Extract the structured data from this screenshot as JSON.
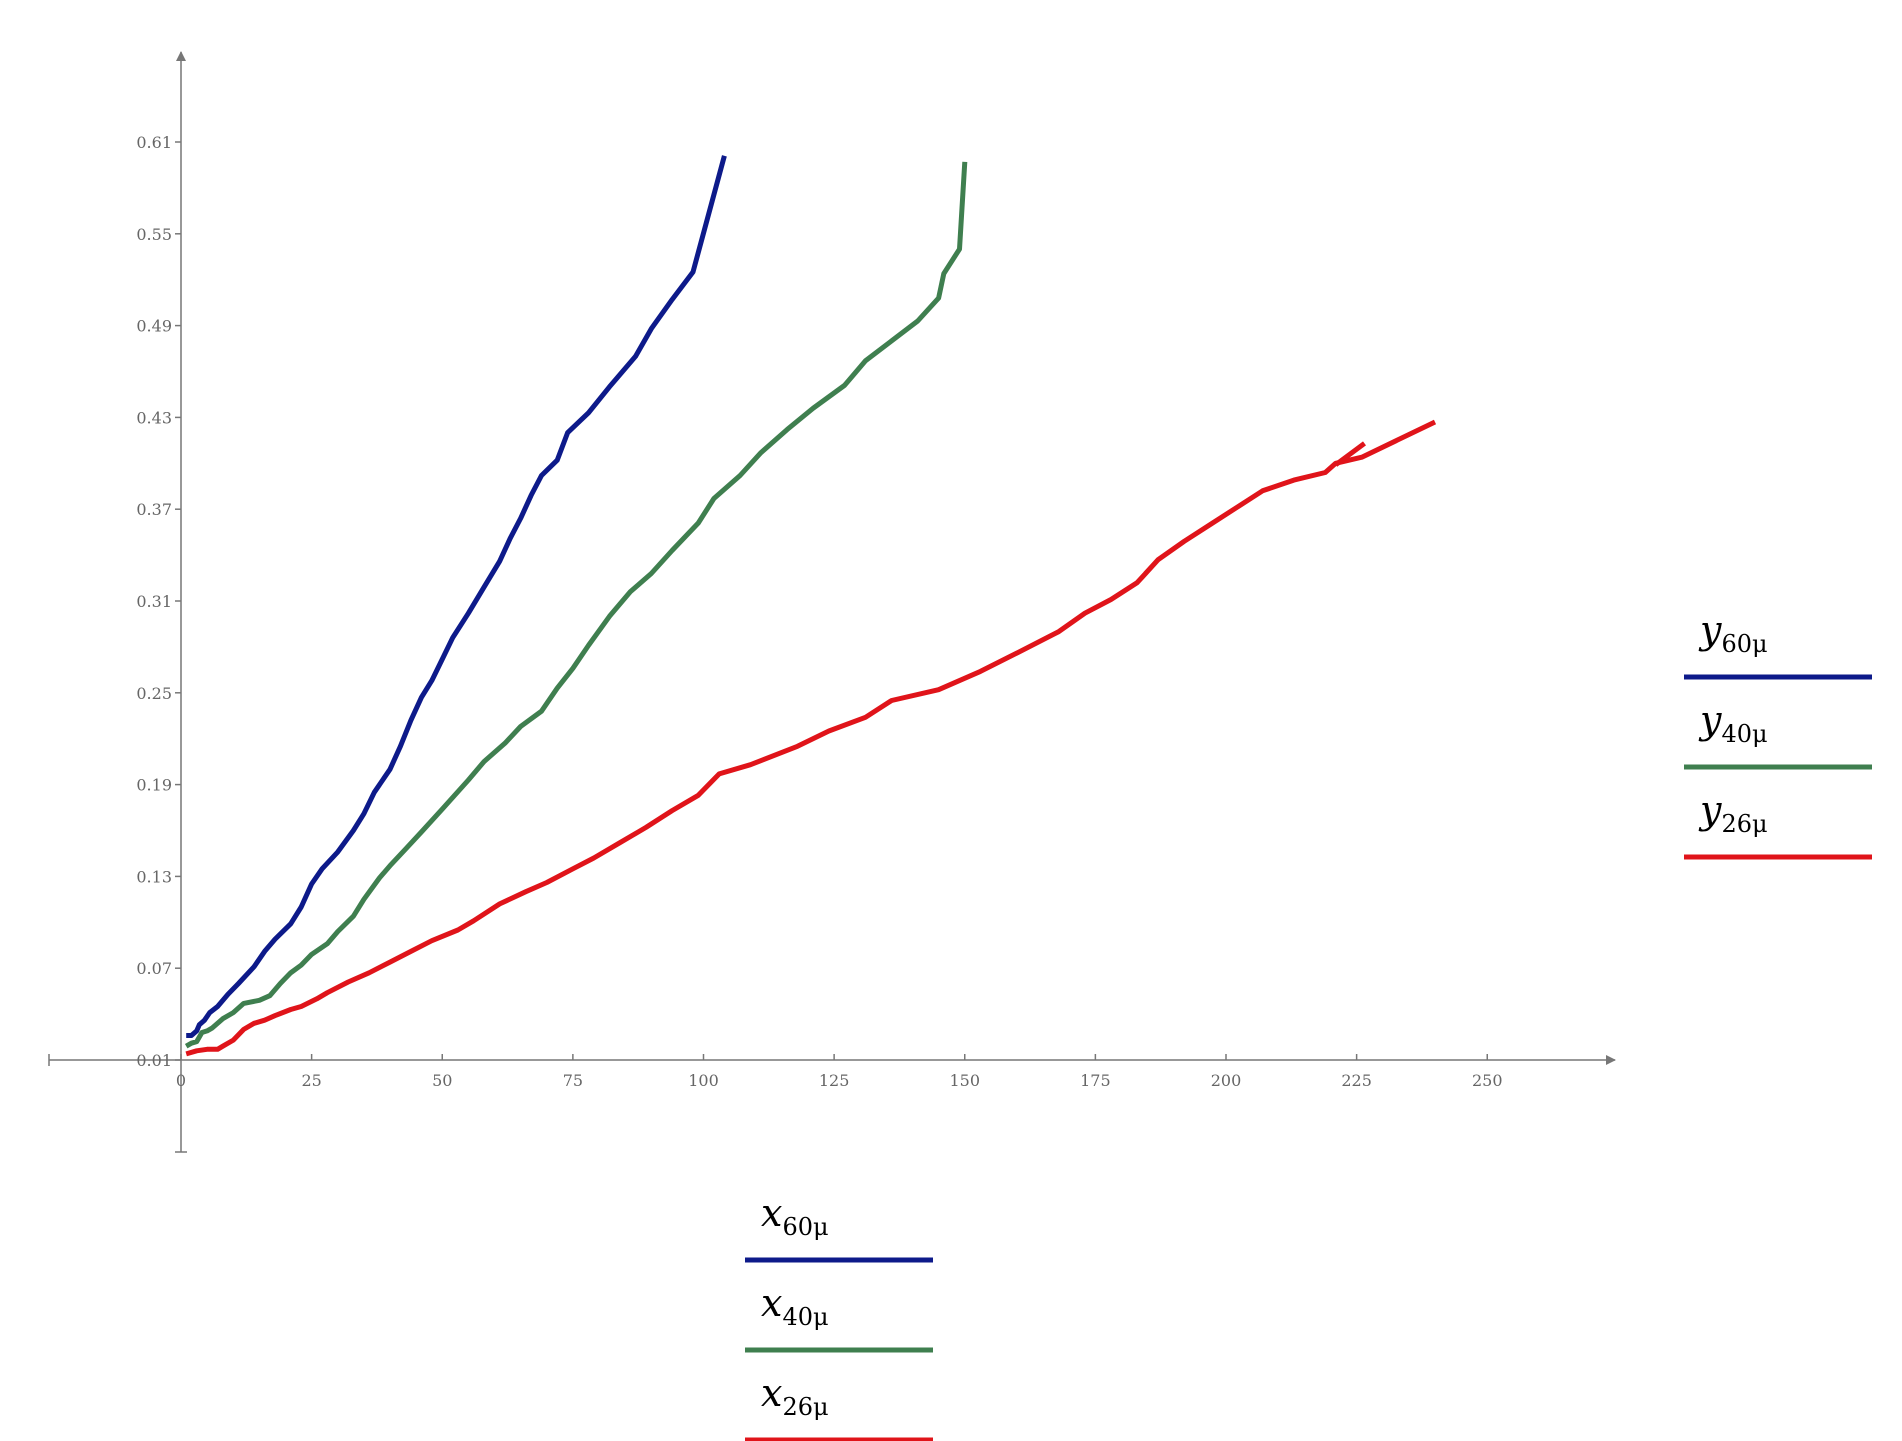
{
  "chart_data": {
    "type": "line",
    "title": "",
    "xlabel": "",
    "ylabel": "",
    "xlim": [
      -25,
      275
    ],
    "ylim": [
      -0.05,
      0.67
    ],
    "x_ticks": [
      0,
      25,
      50,
      75,
      100,
      125,
      150,
      175,
      200,
      225,
      250
    ],
    "x_tick_labels": [
      "0",
      "25",
      "50",
      "75",
      "100",
      "125",
      "150",
      "175",
      "200",
      "225",
      "250"
    ],
    "y_ticks": [
      0.01,
      0.07,
      0.13,
      0.19,
      0.25,
      0.31,
      0.37,
      0.43,
      0.49,
      0.55,
      0.61
    ],
    "y_tick_labels": [
      "0.01",
      "0.07",
      "0.13",
      "0.19",
      "0.25",
      "0.31",
      "0.37",
      "0.43",
      "0.49",
      "0.55",
      "0.61"
    ],
    "grid": false,
    "x_legend_placement": "bottom-center",
    "y_legend_placement": "right",
    "x_legend": [
      {
        "base": "x",
        "sub": "60μ",
        "color": "#0d1a8a"
      },
      {
        "base": "x",
        "sub": "40μ",
        "color": "#3f7f4f"
      },
      {
        "base": "x",
        "sub": "26μ",
        "color": "#e0141a"
      }
    ],
    "y_legend": [
      {
        "base": "y",
        "sub": "60μ",
        "color": "#0d1a8a"
      },
      {
        "base": "y",
        "sub": "40μ",
        "color": "#3f7f4f"
      },
      {
        "base": "y",
        "sub": "26μ",
        "color": "#e0141a"
      }
    ],
    "series": [
      {
        "color": "#0d1a8a",
        "points": [
          [
            1,
            0.026
          ],
          [
            2,
            0.026
          ],
          [
            3,
            0.029
          ],
          [
            3.5,
            0.033
          ],
          [
            4.5,
            0.036
          ],
          [
            5.5,
            0.041
          ],
          [
            7,
            0.045
          ],
          [
            9,
            0.053
          ],
          [
            11,
            0.06
          ],
          [
            14,
            0.071
          ],
          [
            16,
            0.081
          ],
          [
            18,
            0.089
          ],
          [
            21,
            0.099
          ],
          [
            23,
            0.11
          ],
          [
            25,
            0.125
          ],
          [
            27,
            0.135
          ],
          [
            30,
            0.146
          ],
          [
            33,
            0.16
          ],
          [
            35,
            0.171
          ],
          [
            37,
            0.185
          ],
          [
            40,
            0.2
          ],
          [
            42,
            0.215
          ],
          [
            44,
            0.232
          ],
          [
            46,
            0.247
          ],
          [
            48,
            0.258
          ],
          [
            50,
            0.272
          ],
          [
            52,
            0.286
          ],
          [
            55,
            0.302
          ],
          [
            58,
            0.319
          ],
          [
            61,
            0.336
          ],
          [
            63,
            0.351
          ],
          [
            65,
            0.364
          ],
          [
            67,
            0.379
          ],
          [
            69,
            0.392
          ],
          [
            72,
            0.402
          ],
          [
            74,
            0.42
          ],
          [
            78,
            0.433
          ],
          [
            82,
            0.45
          ],
          [
            87,
            0.47
          ],
          [
            90,
            0.488
          ],
          [
            94,
            0.507
          ],
          [
            98,
            0.525
          ],
          [
            104,
            0.601
          ]
        ]
      },
      {
        "color": "#3f7f4f",
        "points": [
          [
            1,
            0.019
          ],
          [
            2,
            0.021
          ],
          [
            3,
            0.022
          ],
          [
            4,
            0.028
          ],
          [
            5,
            0.029
          ],
          [
            6,
            0.031
          ],
          [
            8,
            0.037
          ],
          [
            10,
            0.041
          ],
          [
            12,
            0.047
          ],
          [
            15,
            0.049
          ],
          [
            17,
            0.052
          ],
          [
            19,
            0.06
          ],
          [
            21,
            0.067
          ],
          [
            23,
            0.072
          ],
          [
            25,
            0.079
          ],
          [
            28,
            0.086
          ],
          [
            30,
            0.094
          ],
          [
            33,
            0.104
          ],
          [
            35,
            0.115
          ],
          [
            38,
            0.129
          ],
          [
            40,
            0.137
          ],
          [
            43,
            0.148
          ],
          [
            46,
            0.159
          ],
          [
            50,
            0.174
          ],
          [
            55,
            0.193
          ],
          [
            58,
            0.205
          ],
          [
            62,
            0.217
          ],
          [
            65,
            0.228
          ],
          [
            69,
            0.238
          ],
          [
            72,
            0.253
          ],
          [
            75,
            0.266
          ],
          [
            78,
            0.281
          ],
          [
            82,
            0.3
          ],
          [
            86,
            0.316
          ],
          [
            90,
            0.328
          ],
          [
            94,
            0.343
          ],
          [
            99,
            0.361
          ],
          [
            102,
            0.377
          ],
          [
            107,
            0.392
          ],
          [
            111,
            0.407
          ],
          [
            116,
            0.422
          ],
          [
            121,
            0.436
          ],
          [
            127,
            0.451
          ],
          [
            131,
            0.467
          ],
          [
            136,
            0.48
          ],
          [
            141,
            0.493
          ],
          [
            145,
            0.508
          ],
          [
            146,
            0.524
          ],
          [
            149,
            0.54
          ],
          [
            150,
            0.597
          ]
        ]
      },
      {
        "color": "#e0141a",
        "points": [
          [
            1,
            0.014
          ],
          [
            3,
            0.016
          ],
          [
            5,
            0.017
          ],
          [
            7,
            0.017
          ],
          [
            8,
            0.019
          ],
          [
            10,
            0.023
          ],
          [
            12,
            0.03
          ],
          [
            14,
            0.034
          ],
          [
            16,
            0.036
          ],
          [
            18,
            0.039
          ],
          [
            21,
            0.043
          ],
          [
            23,
            0.045
          ],
          [
            26,
            0.05
          ],
          [
            28,
            0.054
          ],
          [
            32,
            0.061
          ],
          [
            36,
            0.067
          ],
          [
            40,
            0.074
          ],
          [
            44,
            0.081
          ],
          [
            48,
            0.088
          ],
          [
            53,
            0.095
          ],
          [
            56,
            0.101
          ],
          [
            61,
            0.112
          ],
          [
            66,
            0.12
          ],
          [
            70,
            0.126
          ],
          [
            75,
            0.135
          ],
          [
            79,
            0.142
          ],
          [
            84,
            0.152
          ],
          [
            89,
            0.162
          ],
          [
            94,
            0.173
          ],
          [
            99,
            0.183
          ],
          [
            103,
            0.197
          ],
          [
            109,
            0.203
          ],
          [
            118,
            0.215
          ],
          [
            124,
            0.225
          ],
          [
            131,
            0.234
          ],
          [
            136,
            0.245
          ],
          [
            145,
            0.252
          ],
          [
            153,
            0.264
          ],
          [
            160,
            0.276
          ],
          [
            168,
            0.29
          ],
          [
            173,
            0.302
          ],
          [
            178,
            0.311
          ],
          [
            183,
            0.322
          ],
          [
            187,
            0.337
          ],
          [
            192,
            0.349
          ],
          [
            197,
            0.36
          ],
          [
            202,
            0.371
          ],
          [
            207,
            0.382
          ],
          [
            213,
            0.389
          ],
          [
            219,
            0.394
          ],
          [
            221,
            0.4
          ],
          [
            226,
            0.404
          ],
          [
            240,
            0.427
          ]
        ]
      },
      {
        "color": "#e0141a",
        "points": [
          [
            221,
            0.399
          ],
          [
            226.5,
            0.413
          ]
        ]
      }
    ]
  }
}
